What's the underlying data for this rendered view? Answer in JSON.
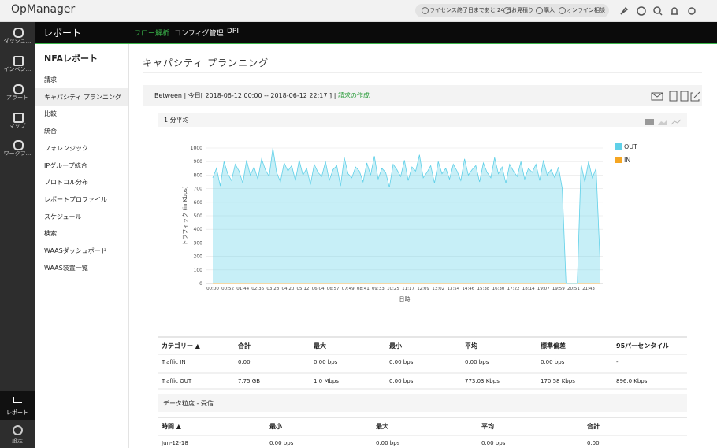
{
  "topbar": {
    "brand": "OpManager",
    "pills": [
      "ライセンス終了日まであと 24 日",
      "お見積り",
      "購入",
      "オンライン相談"
    ]
  },
  "nav": {
    "items": [
      "ダッシュ...",
      "インベン...",
      "アラート",
      "マップ",
      "ワークフ..."
    ],
    "active": "レポート",
    "settings": "設定"
  },
  "header": {
    "title": "レポート",
    "tabs": [
      "フロー解析",
      "コンフィグ管理",
      "DPI"
    ]
  },
  "subnav": {
    "title": "NFAレポート",
    "items": [
      "請求",
      "キャパシティ プランニング",
      "比較",
      "統合",
      "フォレンジック",
      "IPグループ統合",
      "プロトコル分布",
      "レポートプロファイル",
      "スケジュール",
      "検索",
      "WAASダッシュボード",
      "WAAS装置一覧"
    ]
  },
  "main": {
    "title": "キャパシティ プランニング",
    "range": "Between | 今日[ 2018-06-12 00:00 -- 2018-06-12 22:17 ] |",
    "range_link": "請求の作成",
    "panel_title": "1 分平均"
  },
  "chart_data": {
    "type": "area",
    "ylabel": "トラフィック (in Kbps)",
    "xlabel": "日時",
    "categories": [
      "00:00",
      null,
      null,
      null,
      "00:52",
      null,
      null,
      null,
      "01:44",
      null,
      null,
      null,
      "02:36",
      null,
      null,
      null,
      "03:28",
      null,
      null,
      null,
      "04:20",
      null,
      null,
      null,
      "05:12",
      null,
      null,
      null,
      "06:04",
      null,
      null,
      null,
      "06:57",
      null,
      null,
      null,
      "07:49",
      null,
      null,
      null,
      "08:41",
      null,
      null,
      null,
      "09:33",
      null,
      null,
      null,
      "10:25",
      null,
      null,
      null,
      "11:17",
      null,
      null,
      null,
      "12:09",
      null,
      null,
      null,
      "13:02",
      null,
      null,
      null,
      "13:54",
      null,
      null,
      null,
      "14:46",
      null,
      null,
      null,
      "15:38",
      null,
      null,
      null,
      "16:30",
      null,
      null,
      null,
      "17:22",
      null,
      null,
      null,
      "18:14",
      null,
      null,
      null,
      "19:07",
      null,
      null,
      null,
      "19:59",
      null,
      null,
      null,
      "20:51",
      null,
      null,
      null,
      "21:43",
      null,
      null,
      null
    ],
    "series": [
      {
        "name": "IN",
        "color": "#f5a623",
        "values": [
          0,
          0,
          0,
          0,
          0,
          0,
          0,
          0,
          0,
          0,
          0,
          0,
          0,
          0,
          0,
          0,
          0,
          0,
          0,
          0,
          0,
          0,
          0,
          0,
          0,
          0,
          0,
          0,
          0,
          0,
          0,
          0,
          0,
          0,
          0,
          0,
          0,
          0,
          0,
          0,
          0,
          0,
          0,
          0,
          0,
          0,
          0,
          0,
          0,
          0,
          0,
          0,
          0,
          0,
          0,
          0,
          0,
          0,
          0,
          0,
          0,
          0,
          0,
          0,
          0,
          0,
          0,
          0,
          0,
          0,
          0,
          0,
          0,
          0,
          0,
          0,
          0,
          0,
          0,
          0,
          0,
          0,
          0,
          0,
          0,
          0,
          0,
          0,
          0,
          0,
          0,
          0,
          0,
          0,
          0,
          0,
          0,
          0,
          0,
          0,
          0,
          0,
          0,
          0
        ]
      },
      {
        "name": "OUT",
        "color": "#5fd0e8",
        "values": [
          780,
          850,
          720,
          900,
          810,
          760,
          880,
          830,
          740,
          910,
          800,
          860,
          770,
          920,
          840,
          790,
          1000,
          820,
          750,
          890,
          830,
          870,
          760,
          910,
          800,
          850,
          730,
          880,
          820,
          790,
          900,
          760,
          840,
          870,
          720,
          930,
          810,
          780,
          860,
          830,
          750,
          890,
          800,
          940,
          770,
          850,
          820,
          710,
          880,
          840,
          790,
          910,
          760,
          860,
          830,
          950,
          780,
          820,
          870,
          740,
          900,
          810,
          850,
          770,
          880,
          830,
          760,
          920,
          800,
          840,
          870,
          750,
          890,
          820,
          780,
          930,
          810,
          860,
          740,
          880,
          830,
          790,
          900,
          770,
          850,
          820,
          880,
          760,
          910,
          800,
          840,
          780,
          860,
          700,
          0,
          0,
          0,
          0,
          880,
          750,
          900,
          780,
          850,
          200
        ]
      }
    ],
    "ylim": [
      0,
      1000
    ],
    "yticks": [
      0,
      100,
      200,
      300,
      400,
      500,
      600,
      700,
      800,
      900,
      1000
    ],
    "grid": true,
    "legend": "right"
  },
  "table1": {
    "headers": [
      "カテゴリー ▲",
      "合計",
      "最大",
      "最小",
      "平均",
      "標準偏差",
      "95パーセンタイル"
    ],
    "rows": [
      [
        "Traffic IN",
        "0.00",
        "0.00 bps",
        "0.00 bps",
        "0.00 bps",
        "0.00 bps",
        "-"
      ],
      [
        "Traffic OUT",
        "7.75 GB",
        "1.0 Mbps",
        "0.00 bps",
        "773.03 Kbps",
        "170.58 Kbps",
        "896.0 Kbps"
      ]
    ]
  },
  "section2": {
    "title": "データ粒度 - 受信"
  },
  "table2": {
    "headers": [
      "時間 ▲",
      "最小",
      "最大",
      "平均",
      "合計"
    ],
    "rows": [
      [
        "Jun-12-18",
        "0.00 bps",
        "0.00 bps",
        "0.00 bps",
        "0.00"
      ]
    ]
  }
}
